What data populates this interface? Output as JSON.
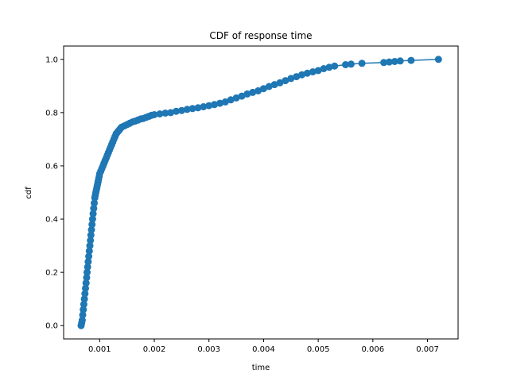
{
  "chart_data": {
    "type": "line",
    "title": "CDF of response time",
    "xlabel": "time",
    "ylabel": "cdf",
    "xlim": [
      0.00034,
      0.00756
    ],
    "ylim": [
      -0.05,
      1.05
    ],
    "x_ticks": [
      0.001,
      0.002,
      0.003,
      0.004,
      0.005,
      0.006,
      0.007
    ],
    "x_tick_labels": [
      "0.001",
      "0.002",
      "0.003",
      "0.004",
      "0.005",
      "0.006",
      "0.007"
    ],
    "y_ticks": [
      0.0,
      0.2,
      0.4,
      0.6,
      0.8,
      1.0
    ],
    "y_tick_labels": [
      "0.0",
      "0.2",
      "0.4",
      "0.6",
      "0.8",
      "1.0"
    ],
    "grid": false,
    "marker": "circle",
    "color": "#1f77b4",
    "series": [
      {
        "x": [
          0.00066,
          0.00067,
          0.00068,
          0.00069,
          0.0007,
          0.00071,
          0.00072,
          0.00073,
          0.00074,
          0.00075,
          0.00076,
          0.00077,
          0.00078,
          0.00079,
          0.0008,
          0.00081,
          0.00082,
          0.00083,
          0.00084,
          0.00085,
          0.00086,
          0.00087,
          0.00088,
          0.00089,
          0.0009,
          0.00091,
          0.00092,
          0.00093,
          0.00094,
          0.00095,
          0.00096,
          0.00097,
          0.00098,
          0.00099,
          0.001,
          0.00102,
          0.00104,
          0.00106,
          0.00108,
          0.0011,
          0.00112,
          0.00114,
          0.00116,
          0.00118,
          0.0012,
          0.00122,
          0.00124,
          0.00126,
          0.00128,
          0.0013,
          0.00132,
          0.00134,
          0.00136,
          0.00138,
          0.0014,
          0.00145,
          0.0015,
          0.00155,
          0.0016,
          0.00165,
          0.0017,
          0.00175,
          0.0018,
          0.00185,
          0.0019,
          0.00195,
          0.002,
          0.0021,
          0.0022,
          0.0023,
          0.0024,
          0.0025,
          0.0026,
          0.0027,
          0.0028,
          0.0029,
          0.003,
          0.0031,
          0.0032,
          0.0033,
          0.0034,
          0.0035,
          0.0036,
          0.0037,
          0.0038,
          0.0039,
          0.004,
          0.0041,
          0.0042,
          0.0043,
          0.0044,
          0.0045,
          0.0046,
          0.0047,
          0.0048,
          0.0049,
          0.005,
          0.0051,
          0.0052,
          0.0053,
          0.0055,
          0.0056,
          0.0058,
          0.0062,
          0.0063,
          0.0064,
          0.0065,
          0.0067,
          0.0072
        ],
        "y": [
          0.0,
          0.01,
          0.02,
          0.04,
          0.06,
          0.08,
          0.1,
          0.12,
          0.14,
          0.16,
          0.18,
          0.2,
          0.22,
          0.24,
          0.26,
          0.28,
          0.3,
          0.32,
          0.34,
          0.36,
          0.38,
          0.4,
          0.42,
          0.44,
          0.46,
          0.48,
          0.49,
          0.5,
          0.51,
          0.52,
          0.53,
          0.54,
          0.55,
          0.56,
          0.57,
          0.58,
          0.59,
          0.6,
          0.61,
          0.62,
          0.63,
          0.64,
          0.65,
          0.66,
          0.67,
          0.68,
          0.69,
          0.7,
          0.71,
          0.72,
          0.725,
          0.73,
          0.735,
          0.74,
          0.745,
          0.75,
          0.755,
          0.76,
          0.765,
          0.768,
          0.772,
          0.776,
          0.778,
          0.782,
          0.786,
          0.79,
          0.792,
          0.795,
          0.798,
          0.8,
          0.805,
          0.808,
          0.812,
          0.815,
          0.818,
          0.822,
          0.826,
          0.83,
          0.835,
          0.84,
          0.848,
          0.855,
          0.862,
          0.87,
          0.876,
          0.882,
          0.89,
          0.898,
          0.905,
          0.912,
          0.92,
          0.928,
          0.935,
          0.942,
          0.948,
          0.953,
          0.958,
          0.965,
          0.97,
          0.975,
          0.98,
          0.982,
          0.985,
          0.988,
          0.99,
          0.992,
          0.994,
          0.996,
          1.0
        ]
      }
    ]
  }
}
